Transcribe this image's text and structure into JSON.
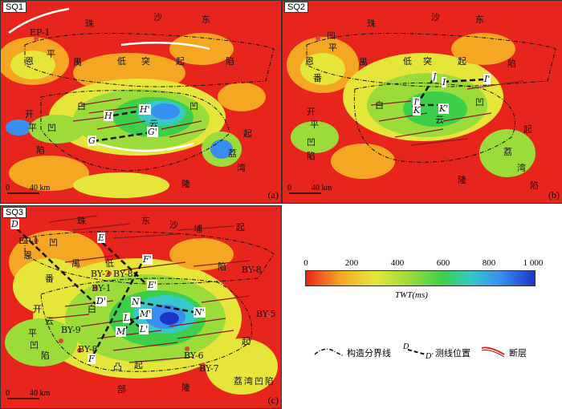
{
  "panels": {
    "a": {
      "title": "SQ1",
      "letter": "(a)",
      "scale_left": "0",
      "scale_right": "40 km"
    },
    "b": {
      "title": "SQ2",
      "letter": "(b)",
      "scale_left": "0",
      "scale_right": "40 km"
    },
    "c": {
      "title": "SQ3",
      "letter": "(c)",
      "scale_left": "0",
      "scale_right": "40 km"
    }
  },
  "map_labels": {
    "sha": "沙",
    "pu": "埔",
    "tu": "突",
    "qi": "起",
    "pen": "盆",
    "tuD": "凸",
    "ep1": "EP-1",
    "en": "恩",
    "ping": "平",
    "fan": "番",
    "yu": "禺",
    "di": "低",
    "ao": "凹",
    "xian": "陷",
    "kai": "开",
    "bai": "白",
    "yun": "云",
    "long": "隆",
    "li": "荔",
    "wan": "湾",
    "dong": "东",
    "bu": "部",
    "er": "二",
    "zhu": "珠"
  },
  "line_labels": {
    "G": "G",
    "Gp": "G'",
    "H": "H",
    "Hp": "H'",
    "I": "I",
    "Ip": "I'",
    "J": "J",
    "Jp": "J'",
    "K": "K",
    "Kp": "K'",
    "D": "D",
    "Dp": "D'",
    "E": "E",
    "Ep": "E'",
    "F": "F",
    "Fp": "F'",
    "L": "L",
    "Lp": "L'",
    "M": "M",
    "Mp": "M'",
    "N": "N",
    "Np": "N'"
  },
  "wells": {
    "by2": "BY-2",
    "by1": "BY-1",
    "by8": "BY-8",
    "by9": "BY-9",
    "by5": "BY-5",
    "by6": "BY-6",
    "by7": "BY-7",
    "by8n": "BY-8"
  },
  "colorbar": {
    "ticks": [
      "0",
      "200",
      "400",
      "600",
      "800",
      "1 000"
    ],
    "unit": "TWT(ms)",
    "colors": [
      "#e8251c",
      "#f5a623",
      "#e6e63a",
      "#9bdc3a",
      "#3cd04a",
      "#37c8c8",
      "#3a8ef0",
      "#1a35c8"
    ]
  },
  "legend": {
    "boundary": "构造分界线",
    "section": "测线位置",
    "fault": "断层"
  }
}
